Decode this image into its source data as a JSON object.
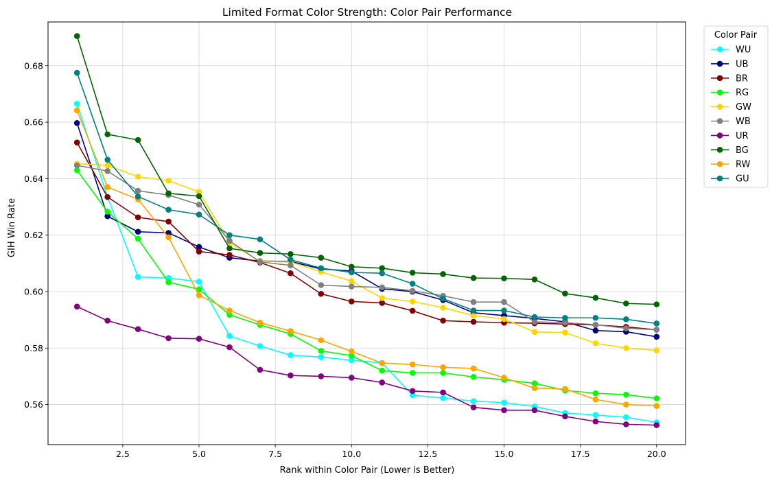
{
  "chart_data": {
    "type": "line",
    "title": "Limited Format Color Strength: Color Pair Performance",
    "xlabel": "Rank within Color Pair (Lower is Better)",
    "ylabel": "GIH Win Rate",
    "xlim": [
      0.05,
      20.95
    ],
    "ylim": [
      0.5458,
      0.6955
    ],
    "xticks": [
      2.5,
      5.0,
      7.5,
      10.0,
      12.5,
      15.0,
      17.5,
      20.0
    ],
    "xtick_labels": [
      "2.5",
      "5.0",
      "7.5",
      "10.0",
      "12.5",
      "15.0",
      "17.5",
      "20.0"
    ],
    "yticks": [
      0.56,
      0.58,
      0.6,
      0.62,
      0.64,
      0.66,
      0.68
    ],
    "ytick_labels": [
      "0.56",
      "0.58",
      "0.60",
      "0.62",
      "0.64",
      "0.66",
      "0.68"
    ],
    "grid": true,
    "legend": {
      "title": "Color Pair",
      "placement": "outside-right"
    },
    "x": [
      1,
      2,
      3,
      4,
      5,
      6,
      7,
      8,
      9,
      10,
      11,
      12,
      13,
      14,
      15,
      16,
      17,
      18,
      19,
      20
    ],
    "series": [
      {
        "name": "WU",
        "color": "#00ffff",
        "values": [
          0.6665,
          0.6335,
          0.6052,
          0.6048,
          0.6035,
          0.5843,
          0.5807,
          0.5775,
          0.5768,
          0.5757,
          0.5747,
          0.5633,
          0.5623,
          0.5612,
          0.5607,
          0.5593,
          0.557,
          0.5563,
          0.5555,
          0.5537
        ]
      },
      {
        "name": "UB",
        "color": "#000080",
        "values": [
          0.6597,
          0.6267,
          0.6212,
          0.6208,
          0.6158,
          0.612,
          0.6108,
          0.6107,
          0.608,
          0.6073,
          0.601,
          0.6,
          0.597,
          0.5925,
          0.5915,
          0.5905,
          0.5893,
          0.5862,
          0.5858,
          0.584
        ]
      },
      {
        "name": "BR",
        "color": "#800000",
        "values": [
          0.6528,
          0.6335,
          0.6263,
          0.6248,
          0.6142,
          0.613,
          0.6103,
          0.6065,
          0.5992,
          0.5965,
          0.596,
          0.5932,
          0.5897,
          0.5893,
          0.589,
          0.5888,
          0.5885,
          0.5882,
          0.5875,
          0.5865
        ]
      },
      {
        "name": "RG",
        "color": "#00ff00",
        "values": [
          0.643,
          0.6283,
          0.6187,
          0.6033,
          0.6008,
          0.5918,
          0.5882,
          0.585,
          0.579,
          0.5773,
          0.572,
          0.5712,
          0.5712,
          0.5698,
          0.5688,
          0.5675,
          0.565,
          0.564,
          0.5635,
          0.5622
        ]
      },
      {
        "name": "GW",
        "color": "#ffd700",
        "values": [
          0.6453,
          0.6447,
          0.6407,
          0.6393,
          0.6353,
          0.6173,
          0.6107,
          0.6105,
          0.607,
          0.6037,
          0.5977,
          0.5965,
          0.5943,
          0.5915,
          0.5903,
          0.5857,
          0.5855,
          0.5817,
          0.58,
          0.5792
        ]
      },
      {
        "name": "WB",
        "color": "#808080",
        "values": [
          0.6447,
          0.6427,
          0.6357,
          0.6342,
          0.6308,
          0.618,
          0.6105,
          0.6093,
          0.6023,
          0.6018,
          0.6015,
          0.6003,
          0.5985,
          0.5963,
          0.5963,
          0.5893,
          0.589,
          0.5883,
          0.587,
          0.5865
        ]
      },
      {
        "name": "UR",
        "color": "#800080",
        "values": [
          0.5947,
          0.5897,
          0.5867,
          0.5835,
          0.5833,
          0.5803,
          0.5723,
          0.5703,
          0.57,
          0.5695,
          0.5678,
          0.5648,
          0.5643,
          0.559,
          0.558,
          0.558,
          0.5558,
          0.554,
          0.553,
          0.5527
        ]
      },
      {
        "name": "BG",
        "color": "#006400",
        "values": [
          0.6905,
          0.6557,
          0.6537,
          0.6348,
          0.6338,
          0.6153,
          0.6137,
          0.6133,
          0.612,
          0.6088,
          0.6083,
          0.6067,
          0.6062,
          0.6048,
          0.6047,
          0.6043,
          0.5993,
          0.5978,
          0.5958,
          0.5955
        ]
      },
      {
        "name": "RW",
        "color": "#ffa500",
        "values": [
          0.6642,
          0.637,
          0.6327,
          0.6192,
          0.5987,
          0.5933,
          0.589,
          0.586,
          0.5828,
          0.5788,
          0.5747,
          0.5742,
          0.5732,
          0.5728,
          0.5695,
          0.5658,
          0.5655,
          0.5618,
          0.56,
          0.5595
        ]
      },
      {
        "name": "GU",
        "color": "#008080",
        "values": [
          0.6775,
          0.6467,
          0.6337,
          0.629,
          0.6273,
          0.62,
          0.6185,
          0.6113,
          0.6083,
          0.6068,
          0.6065,
          0.6028,
          0.5975,
          0.5933,
          0.5933,
          0.591,
          0.5907,
          0.5907,
          0.5902,
          0.5887
        ]
      }
    ]
  }
}
